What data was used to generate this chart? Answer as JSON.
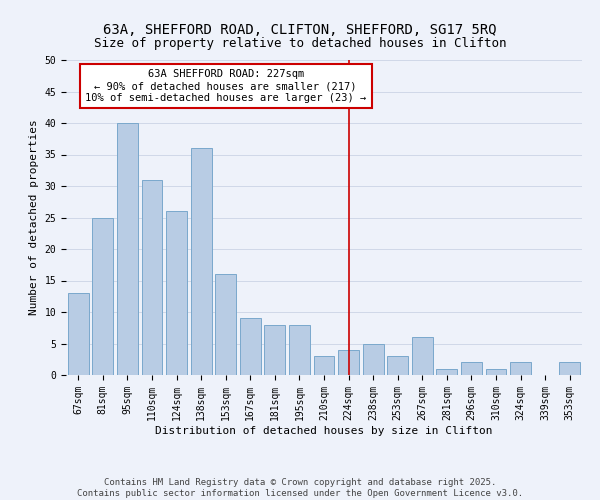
{
  "title": "63A, SHEFFORD ROAD, CLIFTON, SHEFFORD, SG17 5RQ",
  "subtitle": "Size of property relative to detached houses in Clifton",
  "xlabel": "Distribution of detached houses by size in Clifton",
  "ylabel": "Number of detached properties",
  "bar_labels": [
    "67sqm",
    "81sqm",
    "95sqm",
    "110sqm",
    "124sqm",
    "138sqm",
    "153sqm",
    "167sqm",
    "181sqm",
    "195sqm",
    "210sqm",
    "224sqm",
    "238sqm",
    "253sqm",
    "267sqm",
    "281sqm",
    "296sqm",
    "310sqm",
    "324sqm",
    "339sqm",
    "353sqm"
  ],
  "bar_values": [
    13,
    25,
    40,
    31,
    26,
    36,
    16,
    9,
    8,
    8,
    3,
    4,
    5,
    3,
    6,
    1,
    2,
    1,
    2,
    0,
    2
  ],
  "bar_color": "#b8cce4",
  "bar_edge_color": "#7aa8cc",
  "annotation_line_x_label": "224sqm",
  "annotation_box_line1": "63A SHEFFORD ROAD: 227sqm",
  "annotation_box_line2": "← 90% of detached houses are smaller (217)",
  "annotation_box_line3": "10% of semi-detached houses are larger (23) →",
  "annotation_box_color": "#cc0000",
  "vline_color": "#cc0000",
  "ylim": [
    0,
    50
  ],
  "yticks": [
    0,
    5,
    10,
    15,
    20,
    25,
    30,
    35,
    40,
    45,
    50
  ],
  "grid_color": "#d0d8e8",
  "background_color": "#eef2fa",
  "footer_line1": "Contains HM Land Registry data © Crown copyright and database right 2025.",
  "footer_line2": "Contains public sector information licensed under the Open Government Licence v3.0.",
  "title_fontsize": 10,
  "subtitle_fontsize": 9,
  "axis_label_fontsize": 8,
  "tick_fontsize": 7,
  "annotation_fontsize": 7.5,
  "footer_fontsize": 6.5
}
